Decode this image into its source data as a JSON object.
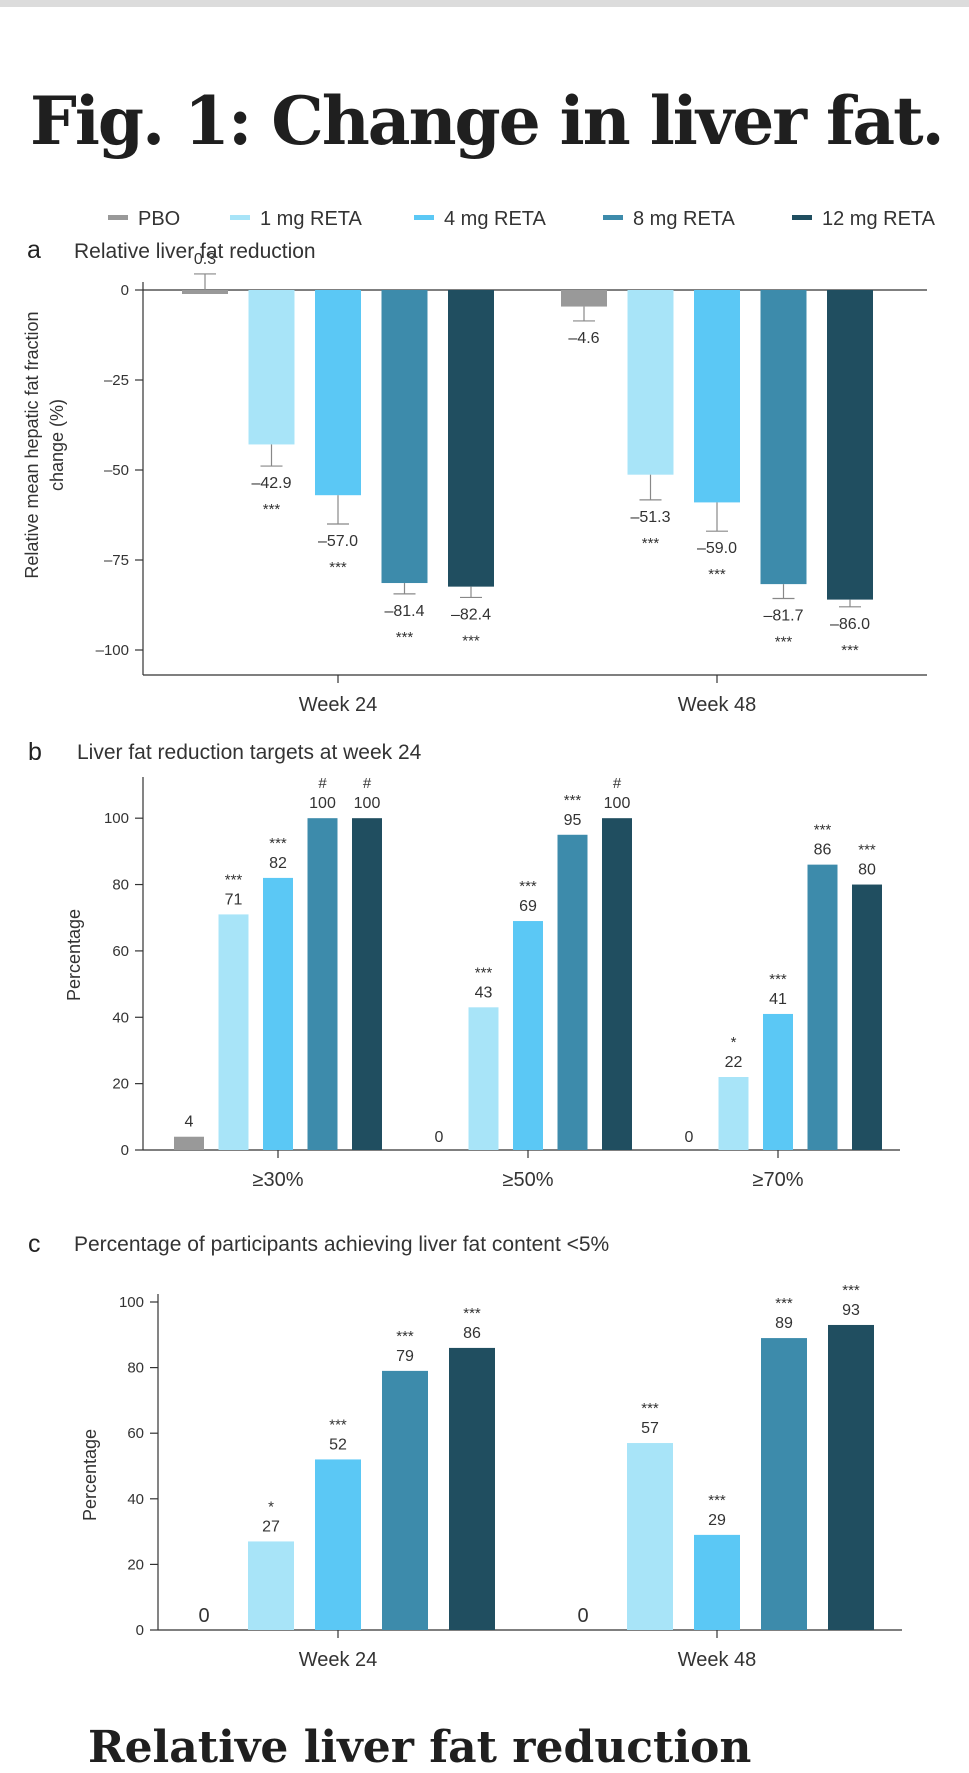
{
  "title": "Fig. 1: Change in liver fat.",
  "next_heading": "Relative liver fat reduction",
  "legend": [
    {
      "label": "PBO",
      "color": "#999999"
    },
    {
      "label": "1 mg RETA",
      "color": "#a8e4f8"
    },
    {
      "label": "4 mg RETA",
      "color": "#5bc8f5"
    },
    {
      "label": "8 mg RETA",
      "color": "#3d8bab"
    },
    {
      "label": "12 mg RETA",
      "color": "#204e60"
    }
  ],
  "panels": {
    "a": {
      "letter": "a",
      "title": "Relative liver fat reduction"
    },
    "b": {
      "letter": "b",
      "title": "Liver fat reduction targets at week 24"
    },
    "c": {
      "letter": "c",
      "title": "Percentage of participants achieving liver fat content <5%"
    }
  },
  "chart_data": [
    {
      "panel": "a",
      "type": "bar",
      "title": "Relative liver fat reduction",
      "ylabel": "Relative mean hepatic fat fraction change (%)",
      "ylabel_lines": [
        "Relative mean hepatic fat fraction",
        "change (%)"
      ],
      "ylim": [
        -100,
        0
      ],
      "yticks": [
        0,
        -25,
        -50,
        -75,
        -100
      ],
      "categories": [
        "Week 24",
        "Week 48"
      ],
      "series": [
        {
          "name": "PBO",
          "values": [
            0.3,
            -4.6
          ],
          "labels": [
            "0.3",
            "–4.6"
          ],
          "sig": [
            "",
            ""
          ]
        },
        {
          "name": "1 mg RETA",
          "values": [
            -42.9,
            -51.3
          ],
          "labels": [
            "–42.9",
            "–51.3"
          ],
          "sig": [
            "***",
            "***"
          ]
        },
        {
          "name": "4 mg RETA",
          "values": [
            -57.0,
            -59.0
          ],
          "labels": [
            "–57.0",
            "–59.0"
          ],
          "sig": [
            "***",
            "***"
          ]
        },
        {
          "name": "8 mg RETA",
          "values": [
            -81.4,
            -81.7
          ],
          "labels": [
            "–81.4",
            "–81.7"
          ],
          "sig": [
            "***",
            "***"
          ]
        },
        {
          "name": "12 mg RETA",
          "values": [
            -82.4,
            -86.0
          ],
          "labels": [
            "–82.4",
            "–86.0"
          ],
          "sig": [
            "***",
            "***"
          ]
        }
      ],
      "error": [
        [
          2.5,
          4
        ],
        [
          6,
          7
        ],
        [
          8,
          8
        ],
        [
          3,
          4
        ],
        [
          3,
          2
        ]
      ],
      "grid": false
    },
    {
      "panel": "b",
      "type": "bar",
      "title": "Liver fat reduction targets at week 24",
      "ylabel": "Percentage",
      "ylim": [
        0,
        110
      ],
      "yticks": [
        0,
        20,
        40,
        60,
        80,
        100
      ],
      "categories": [
        "≥30%",
        "≥50%",
        "≥70%"
      ],
      "series": [
        {
          "name": "PBO",
          "values": [
            4,
            0,
            0
          ],
          "labels": [
            "4",
            "0",
            "0"
          ],
          "sig": [
            "",
            "",
            ""
          ]
        },
        {
          "name": "1 mg RETA",
          "values": [
            71,
            43,
            22
          ],
          "labels": [
            "71",
            "43",
            "22"
          ],
          "sig": [
            "***",
            "***",
            "*"
          ]
        },
        {
          "name": "4 mg RETA",
          "values": [
            82,
            69,
            41
          ],
          "labels": [
            "82",
            "69",
            "41"
          ],
          "sig": [
            "***",
            "***",
            "***"
          ]
        },
        {
          "name": "8 mg RETA",
          "values": [
            100,
            95,
            86
          ],
          "labels": [
            "100",
            "95",
            "86"
          ],
          "sig": [
            "#",
            "***",
            "***"
          ]
        },
        {
          "name": "12 mg RETA",
          "values": [
            100,
            100,
            80
          ],
          "labels": [
            "100",
            "100",
            "80"
          ],
          "sig": [
            "#",
            "#",
            "***"
          ]
        }
      ],
      "grid": false
    },
    {
      "panel": "c",
      "type": "bar",
      "title": "Percentage of participants achieving liver fat content <5%",
      "ylabel": "Percentage",
      "ylim": [
        0,
        100
      ],
      "yticks": [
        0,
        20,
        40,
        60,
        80,
        100
      ],
      "categories": [
        "Week 24",
        "Week 48"
      ],
      "series": [
        {
          "name": "PBO",
          "values": [
            0,
            0
          ],
          "labels": [
            "0",
            "0"
          ],
          "sig": [
            "",
            ""
          ]
        },
        {
          "name": "1 mg RETA",
          "values": [
            27,
            57
          ],
          "labels": [
            "27",
            "57"
          ],
          "sig": [
            "*",
            "***"
          ]
        },
        {
          "name": "4 mg RETA",
          "values": [
            52,
            29
          ],
          "labels": [
            "52",
            "29"
          ],
          "sig": [
            "***",
            "***"
          ]
        },
        {
          "name": "8 mg RETA",
          "values": [
            79,
            89
          ],
          "labels": [
            "79",
            "89"
          ],
          "sig": [
            "***",
            "***"
          ]
        },
        {
          "name": "12 mg RETA",
          "values": [
            86,
            93
          ],
          "labels": [
            "86",
            "93"
          ],
          "sig": [
            "***",
            "***"
          ]
        }
      ],
      "grid": false
    }
  ]
}
